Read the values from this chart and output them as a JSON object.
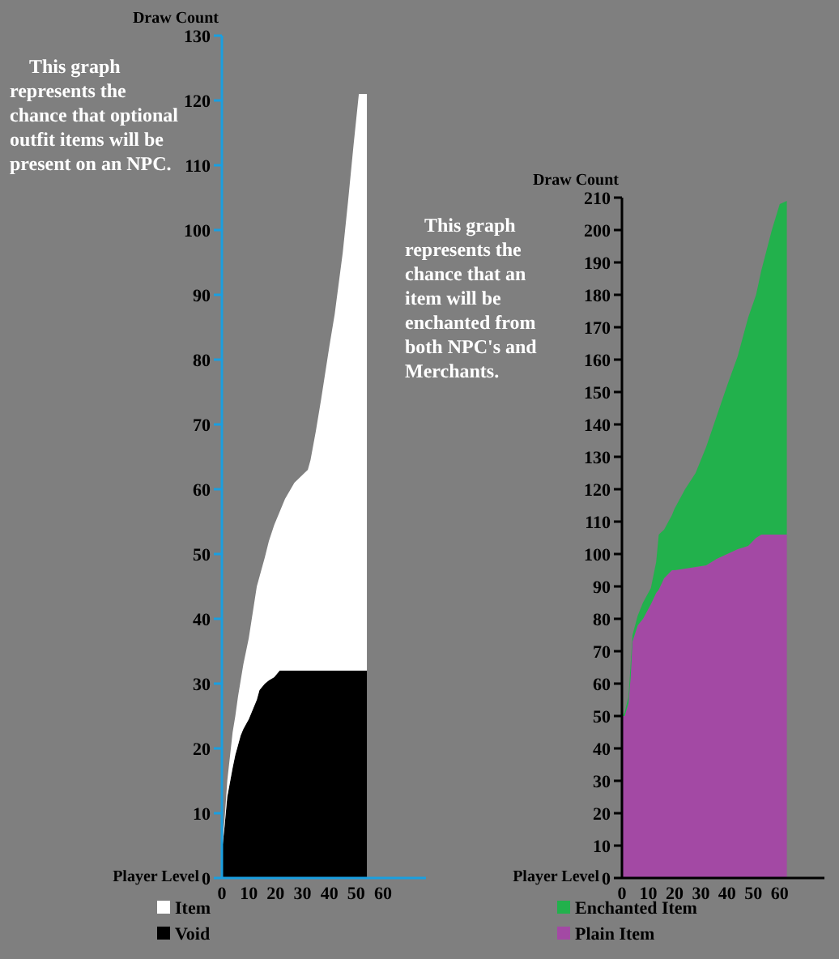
{
  "chart_data": [
    {
      "type": "area",
      "stacked": true,
      "xlabel": "Player Level",
      "ylabel": "Draw Count",
      "x": [
        0,
        1,
        2,
        4,
        5,
        6,
        7,
        8,
        10,
        13,
        14,
        16,
        17.5,
        19.5,
        21.5,
        23.5,
        27,
        32,
        33,
        35,
        37,
        40,
        42,
        45,
        47,
        49,
        51,
        54
      ],
      "series": [
        {
          "name": "Void",
          "color": "#000000",
          "values": [
            4,
            8,
            12.5,
            17,
            19,
            20.5,
            22,
            23,
            24.5,
            27.5,
            29,
            30,
            30.5,
            31,
            32,
            32,
            32,
            32,
            32,
            32,
            32,
            32,
            32,
            32,
            32,
            32,
            32,
            32
          ]
        },
        {
          "name": "Item",
          "color": "#ffffff",
          "values": [
            1,
            1,
            2.5,
            5.5,
            6,
            7.5,
            8.5,
            10,
            12.5,
            17.5,
            17.5,
            19.5,
            21.5,
            23.5,
            24.5,
            26.5,
            29,
            31,
            32.5,
            37,
            42,
            50,
            55,
            64.5,
            72.5,
            81,
            89,
            89
          ]
        }
      ],
      "xlim": [
        0,
        76
      ],
      "xticks": [
        0,
        10,
        20,
        30,
        40,
        50,
        60
      ],
      "ylim": [
        0,
        130
      ],
      "yticks": [
        0,
        10,
        20,
        30,
        40,
        50,
        60,
        70,
        80,
        90,
        100,
        110,
        120,
        130
      ],
      "legend": "bottom left",
      "annotations": [
        "This graph represents the chance that optional outfit items will be present on an NPC."
      ]
    },
    {
      "type": "area",
      "stacked": true,
      "xlabel": "Player Level",
      "ylabel": "Draw Count",
      "x": [
        0,
        1,
        2.5,
        3.3,
        4,
        6,
        8,
        10,
        11,
        13,
        14,
        16,
        19,
        20,
        24,
        28,
        32,
        36,
        40,
        44,
        48,
        51,
        53,
        57,
        60,
        62.7
      ],
      "series": [
        {
          "name": "Plain Item",
          "color": "#a349a4",
          "values": [
            50,
            50,
            54,
            62,
            73,
            78,
            80,
            83,
            84.5,
            88,
            89,
            92.5,
            95,
            95,
            95.5,
            96,
            96.5,
            98.5,
            100,
            101.5,
            102.5,
            105,
            106,
            106,
            106,
            106
          ]
        },
        {
          "name": "Enchanted Item",
          "color": "#22b14c",
          "values": [
            0,
            1,
            2,
            4,
            2,
            3,
            5,
            5,
            5,
            9.5,
            17,
            15,
            17,
            19,
            24.5,
            29,
            36.5,
            44,
            52,
            59.5,
            70.5,
            75,
            81.5,
            94,
            102,
            103
          ]
        }
      ],
      "xlim": [
        0,
        77
      ],
      "xticks": [
        0,
        10,
        20,
        30,
        40,
        50,
        60
      ],
      "ylim": [
        0,
        210
      ],
      "yticks": [
        0,
        10,
        20,
        30,
        40,
        50,
        60,
        70,
        80,
        90,
        100,
        110,
        120,
        130,
        140,
        150,
        160,
        170,
        180,
        190,
        200,
        210
      ],
      "legend": "bottom left",
      "annotations": [
        "This graph represents the chance that an item will be enchanted from both NPC's and Merchants."
      ]
    }
  ]
}
